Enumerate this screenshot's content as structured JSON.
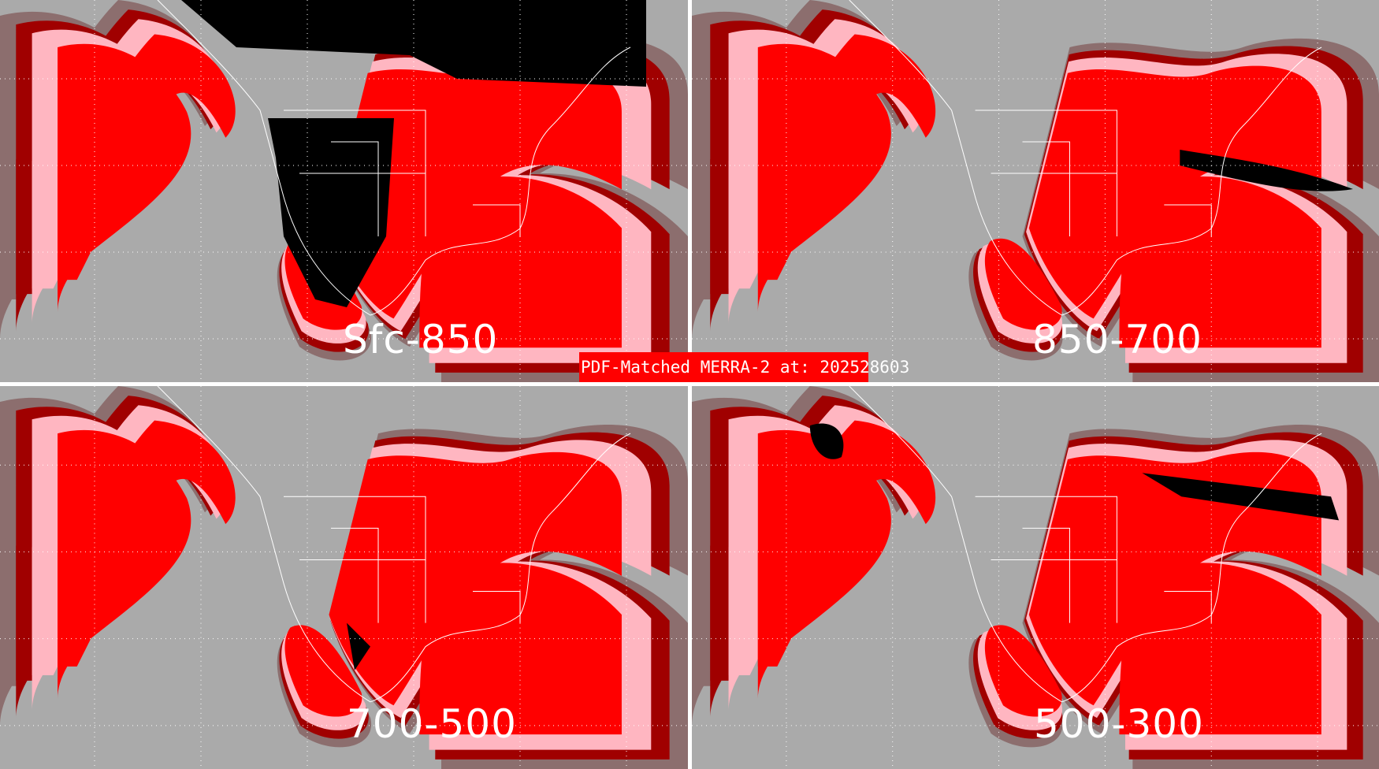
{
  "title": "PDF-Matched MERRA-2 at: 202528603",
  "panels": [
    {
      "label": "Sfc-850"
    },
    {
      "label": "850-700"
    },
    {
      "label": "700-500"
    },
    {
      "label": "500-300"
    }
  ],
  "colors": {
    "background": "#aaaaaa",
    "gray_dark": "#8c6e6e",
    "dark_red": "#a00000",
    "red": "#ff0000",
    "pink": "#ffb6c1",
    "black": "#000000",
    "map_lines": "#ffffff"
  }
}
